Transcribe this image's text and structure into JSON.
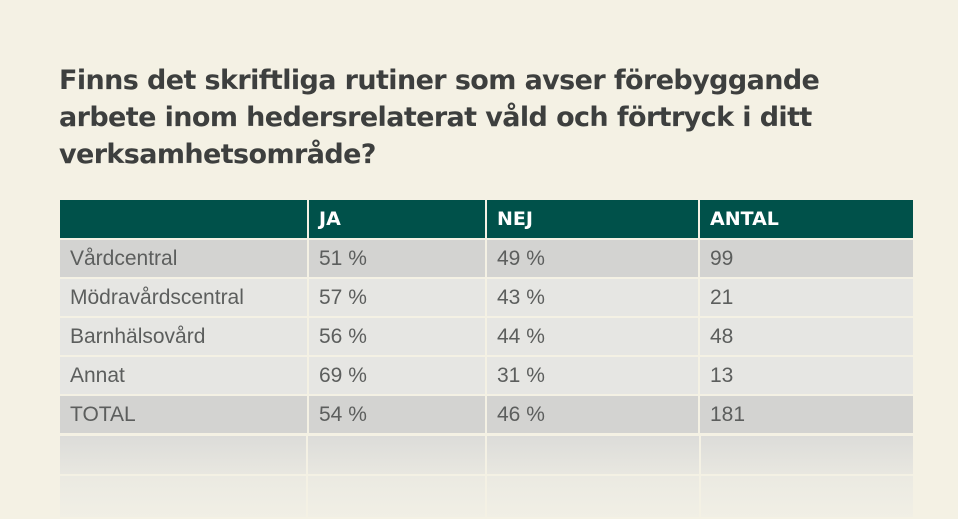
{
  "title": "Finns det skriftliga rutiner som avser förebyggande arbete inom hedersrelaterat våld och förtryck i ditt verksamhetsområde?",
  "colors": {
    "background": "#f4f1e4",
    "header": "#00514a",
    "row_dark": "#d3d3d1",
    "row_light": "#e6e6e3",
    "title_text": "#3d3f3e"
  },
  "chart_data": {
    "type": "table",
    "title": "Finns det skriftliga rutiner som avser förebyggande arbete inom hedersrelaterat våld och förtryck i ditt verksamhetsområde?",
    "columns": [
      "",
      "JA",
      "NEJ",
      "ANTAL"
    ],
    "rows": [
      [
        "Vårdcentral",
        "51 %",
        "49 %",
        "99"
      ],
      [
        "Mödravårdscentral",
        "57 %",
        "43 %",
        "21"
      ],
      [
        "Barnhälsovård",
        "56 %",
        "44 %",
        "48"
      ],
      [
        "Annat",
        "69 %",
        "31 %",
        "13"
      ],
      [
        "TOTAL",
        "54 %",
        "46 %",
        "181"
      ]
    ]
  }
}
